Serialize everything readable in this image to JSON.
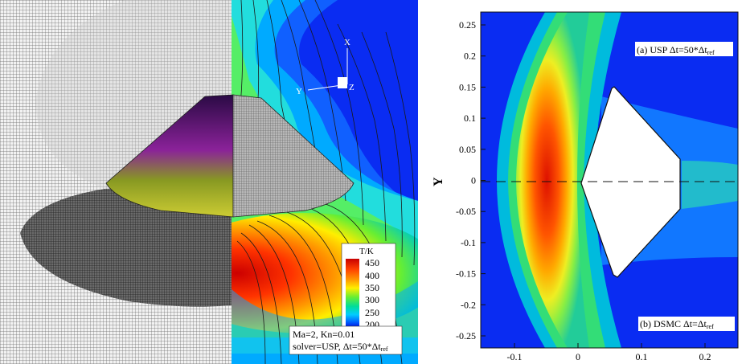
{
  "left_figure": {
    "axis_triad": {
      "x_label": "X",
      "y_label": "Y",
      "z_label": "Z"
    },
    "colorbar": {
      "title": "T/K",
      "ticks": [
        "450",
        "400",
        "350",
        "300",
        "250",
        "200"
      ],
      "colors": [
        "#c80000",
        "#ff4000",
        "#ff9900",
        "#ffee00",
        "#66ee33",
        "#00dd99",
        "#00ccff",
        "#0066ff",
        "#0000dd"
      ]
    },
    "info_box": {
      "line1": "Ma=2, Kn=0.01",
      "line2_prefix": "solver=USP, Δt=50*Δt",
      "line2_sub": "ref"
    }
  },
  "right_figure": {
    "y_axis_label": "Y",
    "y_ticks": [
      "0.25",
      "0.2",
      "0.15",
      "0.1",
      "0.05",
      "0",
      "-0.05",
      "-0.1",
      "-0.15",
      "-0.2",
      "-0.25"
    ],
    "x_ticks": [
      "-0.1",
      "0",
      "0.1",
      "0.2"
    ],
    "label_a_prefix": "(a) USP Δt=50*Δt",
    "label_a_sub": "ref",
    "label_b_prefix": "(b) DSMC Δt=Δt",
    "label_b_sub": "ref"
  }
}
